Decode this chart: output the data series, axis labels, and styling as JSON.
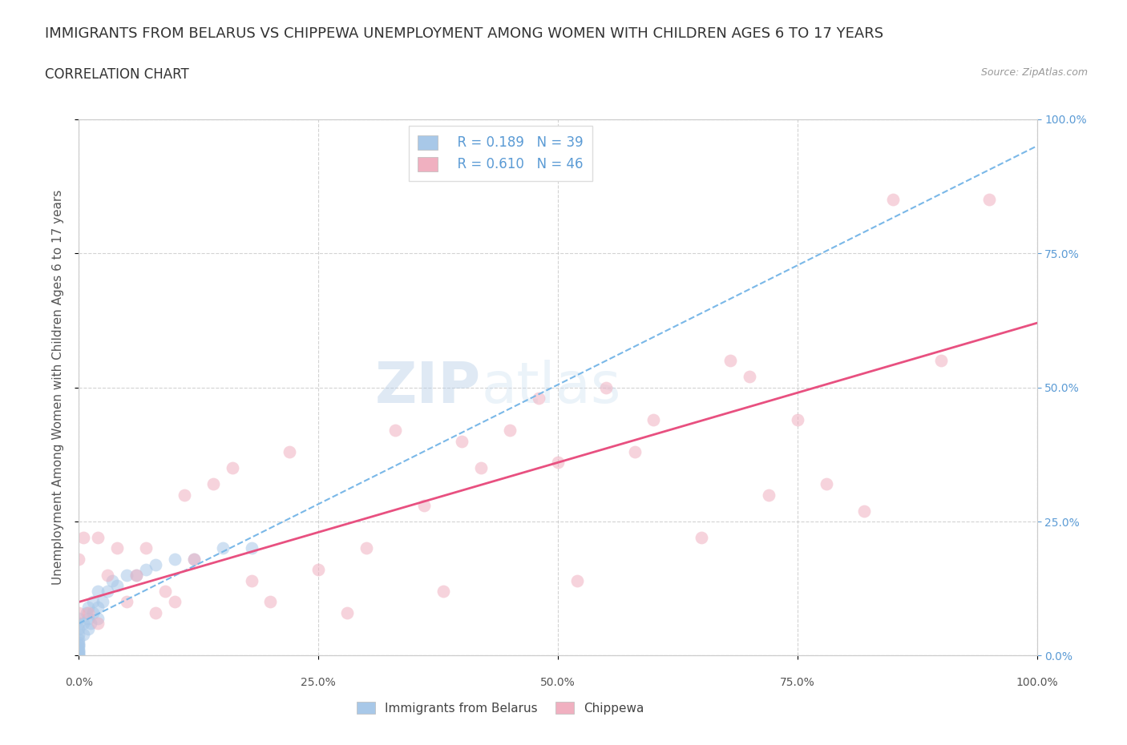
{
  "title": "IMMIGRANTS FROM BELARUS VS CHIPPEWA UNEMPLOYMENT AMONG WOMEN WITH CHILDREN AGES 6 TO 17 YEARS",
  "subtitle": "CORRELATION CHART",
  "source": "Source: ZipAtlas.com",
  "ylabel": "Unemployment Among Women with Children Ages 6 to 17 years",
  "xlim": [
    0.0,
    1.0
  ],
  "ylim": [
    0.0,
    1.0
  ],
  "xtick_labels": [
    "0.0%",
    "",
    "25.0%",
    "",
    "50.0%",
    "",
    "75.0%",
    "",
    "100.0%"
  ],
  "xtick_vals": [
    0.0,
    0.125,
    0.25,
    0.375,
    0.5,
    0.625,
    0.75,
    0.875,
    1.0
  ],
  "ytick_vals": [
    0.0,
    0.25,
    0.5,
    0.75,
    1.0
  ],
  "right_ytick_labels": [
    "0.0%",
    "25.0%",
    "50.0%",
    "75.0%",
    "100.0%"
  ],
  "watermark_zip": "ZIP",
  "watermark_atlas": "atlas",
  "color_blue": "#a8c8e8",
  "color_blue_line": "#7ab8e8",
  "color_pink": "#f0b0c0",
  "color_pink_line": "#e85080",
  "legend_label_blue": "Immigrants from Belarus",
  "legend_label_pink": "Chippewa",
  "legend_R_blue": "R = 0.189",
  "legend_N_blue": "N = 39",
  "legend_R_pink": "R = 0.610",
  "legend_N_pink": "N = 46",
  "blue_scatter_x": [
    0.0,
    0.0,
    0.0,
    0.0,
    0.0,
    0.0,
    0.0,
    0.0,
    0.0,
    0.0,
    0.0,
    0.0,
    0.0,
    0.0,
    0.0,
    0.005,
    0.005,
    0.008,
    0.01,
    0.01,
    0.01,
    0.012,
    0.015,
    0.015,
    0.02,
    0.02,
    0.02,
    0.025,
    0.03,
    0.035,
    0.04,
    0.05,
    0.06,
    0.07,
    0.08,
    0.1,
    0.12,
    0.15,
    0.18
  ],
  "blue_scatter_y": [
    0.0,
    0.0,
    0.005,
    0.005,
    0.01,
    0.01,
    0.015,
    0.02,
    0.02,
    0.025,
    0.03,
    0.04,
    0.05,
    0.06,
    0.07,
    0.04,
    0.06,
    0.08,
    0.05,
    0.07,
    0.09,
    0.06,
    0.08,
    0.1,
    0.07,
    0.09,
    0.12,
    0.1,
    0.12,
    0.14,
    0.13,
    0.15,
    0.15,
    0.16,
    0.17,
    0.18,
    0.18,
    0.2,
    0.2
  ],
  "pink_scatter_x": [
    0.0,
    0.0,
    0.005,
    0.01,
    0.02,
    0.02,
    0.03,
    0.04,
    0.05,
    0.06,
    0.07,
    0.08,
    0.09,
    0.1,
    0.11,
    0.12,
    0.14,
    0.16,
    0.18,
    0.2,
    0.22,
    0.25,
    0.28,
    0.3,
    0.33,
    0.36,
    0.38,
    0.4,
    0.42,
    0.45,
    0.48,
    0.5,
    0.52,
    0.55,
    0.58,
    0.6,
    0.65,
    0.68,
    0.7,
    0.72,
    0.75,
    0.78,
    0.82,
    0.85,
    0.9,
    0.95
  ],
  "pink_scatter_y": [
    0.08,
    0.18,
    0.22,
    0.08,
    0.06,
    0.22,
    0.15,
    0.2,
    0.1,
    0.15,
    0.2,
    0.08,
    0.12,
    0.1,
    0.3,
    0.18,
    0.32,
    0.35,
    0.14,
    0.1,
    0.38,
    0.16,
    0.08,
    0.2,
    0.42,
    0.28,
    0.12,
    0.4,
    0.35,
    0.42,
    0.48,
    0.36,
    0.14,
    0.5,
    0.38,
    0.44,
    0.22,
    0.55,
    0.52,
    0.3,
    0.44,
    0.32,
    0.27,
    0.85,
    0.55,
    0.85
  ],
  "blue_trendline_x": [
    0.0,
    1.0
  ],
  "blue_trendline_y": [
    0.06,
    0.95
  ],
  "pink_trendline_x": [
    0.0,
    1.0
  ],
  "pink_trendline_y": [
    0.1,
    0.62
  ],
  "background_color": "#ffffff",
  "grid_color": "#c8c8c8",
  "title_color": "#333333",
  "right_label_color": "#5b9bd5",
  "bottom_label_color": "#555555",
  "title_fontsize": 13,
  "subtitle_fontsize": 12,
  "axis_label_fontsize": 11,
  "tick_fontsize": 10,
  "marker_size": 130
}
